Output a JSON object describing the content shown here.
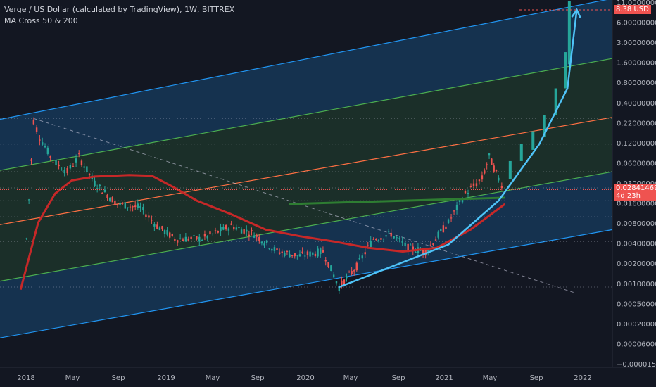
{
  "legend": {
    "title": "Verge / US Dollar (calculated by TradingView), 1W, BITTREX",
    "indicator": "MA Cross 50 & 200"
  },
  "colors": {
    "background": "#131722",
    "candle_up": "#26a69a",
    "candle_down": "#ef5350",
    "ma_long": "#c62828",
    "ma_short": "#2e7d32",
    "channel_edge": "#2196f3",
    "channel_mid": "#4caf50",
    "channel_center": "#ff7043",
    "arc": "#4fc3f7",
    "last_price_tag": "#ef5350"
  },
  "chart_data": {
    "type": "candlestick",
    "symbol": "XVG/USD",
    "interval": "1W",
    "y_scale": "log",
    "y_ticks": [
      "11.00000000",
      "6.00000000",
      "3.00000000",
      "1.60000000",
      "0.80000000",
      "0.40000000",
      "0.22000000",
      "0.12000000",
      "0.06000000",
      "0.03000000",
      "0.01600000",
      "0.00800000",
      "0.00400000",
      "0.00200000",
      "0.00100000",
      "0.00050000",
      "0.00020000",
      "0.00006000",
      "−0.00001550"
    ],
    "x_ticks": [
      "2018",
      "May",
      "Sep",
      "2019",
      "May",
      "Sep",
      "2020",
      "May",
      "Sep",
      "2021",
      "May",
      "Sep",
      "2022"
    ],
    "last_price": "0.02841469",
    "countdown": "4d 23h",
    "target_label": "8.38 USD",
    "price_path": [
      [
        "2017-12-01",
        0.006
      ],
      [
        "2017-12-20",
        0.25
      ],
      [
        "2018-01-05",
        0.15
      ],
      [
        "2018-02-10",
        0.07
      ],
      [
        "2018-03-20",
        0.05
      ],
      [
        "2018-04-20",
        0.08
      ],
      [
        "2018-06-01",
        0.035
      ],
      [
        "2018-08-01",
        0.018
      ],
      [
        "2018-10-01",
        0.016
      ],
      [
        "2018-11-15",
        0.009
      ],
      [
        "2019-01-01",
        0.006
      ],
      [
        "2019-03-15",
        0.006
      ],
      [
        "2019-06-01",
        0.009
      ],
      [
        "2019-08-01",
        0.007
      ],
      [
        "2019-10-01",
        0.004
      ],
      [
        "2019-12-01",
        0.0035
      ],
      [
        "2020-02-01",
        0.004
      ],
      [
        "2020-03-15",
        0.0013
      ],
      [
        "2020-05-01",
        0.0025
      ],
      [
        "2020-06-15",
        0.006
      ],
      [
        "2020-08-01",
        0.007
      ],
      [
        "2020-09-15",
        0.0045
      ],
      [
        "2020-11-01",
        0.004
      ],
      [
        "2021-01-01",
        0.01
      ],
      [
        "2021-02-15",
        0.025
      ],
      [
        "2021-04-01",
        0.04
      ],
      [
        "2021-04-20",
        0.08
      ],
      [
        "2021-05-15",
        0.04
      ],
      [
        "2021-06-01",
        0.028
      ]
    ],
    "ma_long": [
      [
        "2017-11-15",
        0.0012
      ],
      [
        "2018-01-01",
        0.01
      ],
      [
        "2018-02-15",
        0.025
      ],
      [
        "2018-04-01",
        0.038
      ],
      [
        "2018-06-01",
        0.043
      ],
      [
        "2018-09-01",
        0.045
      ],
      [
        "2018-11-01",
        0.044
      ],
      [
        "2019-01-01",
        0.03
      ],
      [
        "2019-03-01",
        0.02
      ],
      [
        "2019-06-01",
        0.013
      ],
      [
        "2019-09-01",
        0.008
      ],
      [
        "2019-12-01",
        0.0065
      ],
      [
        "2020-03-01",
        0.0055
      ],
      [
        "2020-06-01",
        0.0045
      ],
      [
        "2020-09-01",
        0.004
      ],
      [
        "2020-12-01",
        0.0045
      ],
      [
        "2021-03-01",
        0.008
      ],
      [
        "2021-06-01",
        0.018
      ]
    ],
    "ma_short_segment": [
      [
        "2019-11-01",
        0.018
      ],
      [
        "2021-06-01",
        0.022
      ]
    ],
    "channel": {
      "anchor_dates": [
        "2017-09-01",
        "2022-03-15"
      ],
      "upper": [
        0.25,
        12.0
      ],
      "upper_mid": [
        0.05,
        1.8
      ],
      "center": [
        0.009,
        0.28
      ],
      "lower_mid": [
        0.0015,
        0.05
      ],
      "lower": [
        0.00025,
        0.008
      ]
    },
    "diagonal": [
      [
        "2017-12-20",
        0.27
      ],
      [
        "2021-12-01",
        0.0011
      ]
    ],
    "arc": [
      [
        "2020-03-15",
        0.0013
      ],
      [
        "2021-01-01",
        0.005
      ],
      [
        "2021-05-15",
        0.02
      ],
      [
        "2021-09-01",
        0.12
      ],
      [
        "2021-11-15",
        0.7
      ],
      [
        "2021-12-10",
        8.38
      ]
    ],
    "horizontal_levels": [
      0.27,
      0.12,
      0.05,
      0.03,
      0.02,
      0.012,
      0.0055,
      0.0013
    ],
    "projection_bars": [
      [
        "2021-06-15",
        0.04,
        0.07
      ],
      [
        "2021-07-15",
        0.07,
        0.12
      ],
      [
        "2021-08-15",
        0.1,
        0.18
      ],
      [
        "2021-09-15",
        0.15,
        0.3
      ],
      [
        "2021-10-15",
        0.3,
        0.7
      ],
      [
        "2021-11-10",
        0.7,
        2.2
      ],
      [
        "2021-11-20",
        1.5,
        11.0
      ]
    ]
  }
}
